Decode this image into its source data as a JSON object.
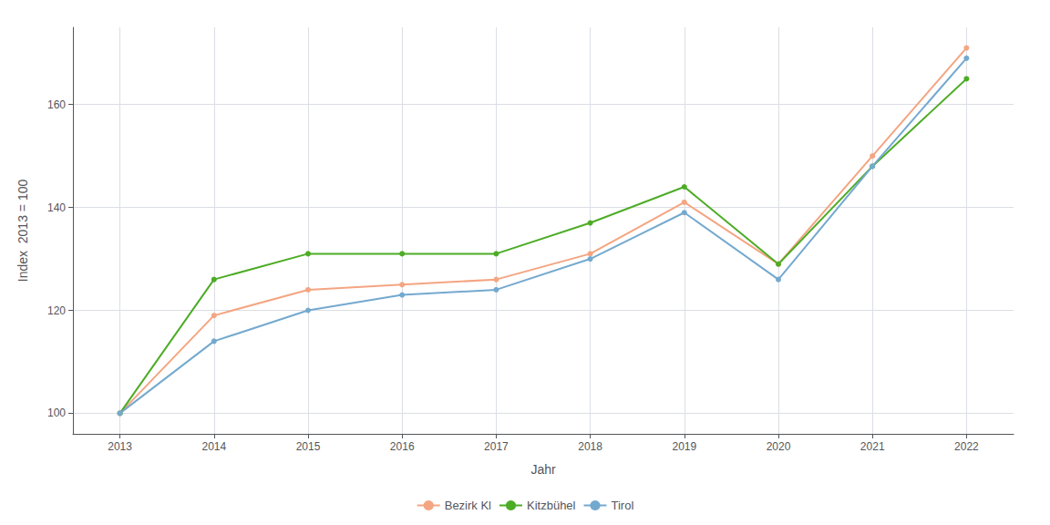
{
  "chart_data": {
    "type": "line",
    "x": [
      2013,
      2014,
      2015,
      2016,
      2017,
      2018,
      2019,
      2020,
      2021,
      2022
    ],
    "series": [
      {
        "name": "Bezirk Kl",
        "color": "#F4A582",
        "marker": "circle",
        "values": [
          100,
          119,
          124,
          125,
          126,
          131,
          141,
          129,
          150,
          171
        ]
      },
      {
        "name": "Kitzbühel",
        "color": "#4DAC26",
        "marker": "circle",
        "values": [
          100,
          126,
          131,
          131,
          131,
          137,
          144,
          129,
          148,
          165
        ]
      },
      {
        "name": "Tirol",
        "color": "#74A9CF",
        "marker": "circle",
        "values": [
          100,
          114,
          120,
          123,
          124,
          130,
          139,
          126,
          148,
          169
        ]
      }
    ],
    "xlabel": "Jahr",
    "ylabel": "Index  2013 = 100",
    "xlim": [
      2012.5,
      2022.5
    ],
    "xticks": [
      2013,
      2014,
      2015,
      2016,
      2017,
      2018,
      2019,
      2020,
      2021,
      2022
    ],
    "ylim": [
      96,
      175
    ],
    "yticks": [
      100,
      120,
      140,
      160
    ],
    "grid": true,
    "legend": "bottom"
  }
}
